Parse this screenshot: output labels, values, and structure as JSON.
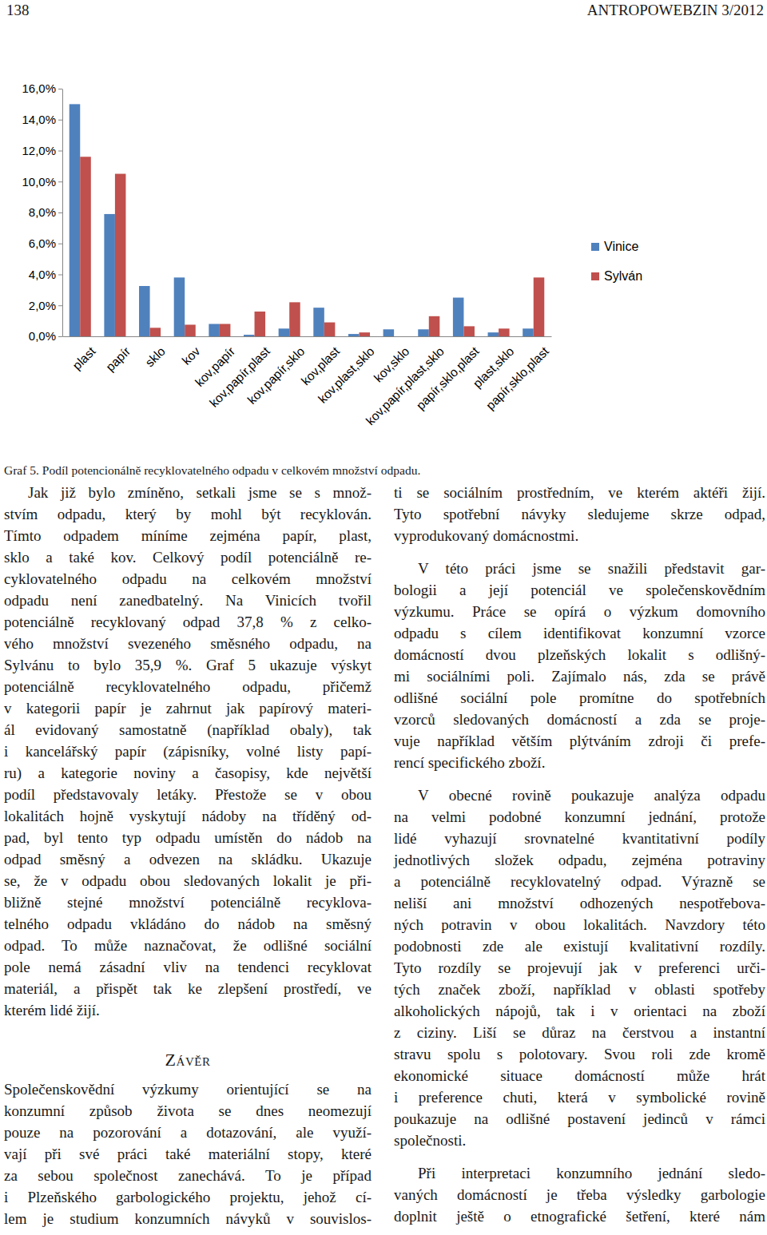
{
  "header": {
    "page": "138",
    "journal": "ANTROPOWEBZIN 3/2012"
  },
  "chart_data": {
    "type": "bar",
    "categories": [
      "plast",
      "papír",
      "sklo",
      "kov",
      "kov,papír",
      "kov,papír,plast",
      "kov,papír,sklo",
      "kov,plast",
      "kov,plast,sklo",
      "kov,sklo",
      "kov,papír,plast,sklo",
      "papír,sklo,plast",
      "plast,sklo",
      "papír,sklo,plast"
    ],
    "series": [
      {
        "name": "Vinice",
        "color": "#4f81bd",
        "values": [
          15.0,
          7.9,
          3.25,
          3.8,
          0.8,
          0.1,
          0.5,
          1.85,
          0.15,
          0.45,
          0.45,
          2.5,
          0.25,
          0.5
        ]
      },
      {
        "name": "Sylván",
        "color": "#c0504d",
        "values": [
          11.6,
          10.5,
          0.55,
          0.75,
          0.8,
          1.6,
          2.2,
          0.9,
          0.25,
          0,
          1.3,
          0.65,
          0.5,
          3.8
        ]
      }
    ],
    "ylim": [
      0,
      16
    ],
    "yticks": [
      {
        "value": 0,
        "label": "0,0%"
      },
      {
        "value": 2,
        "label": "2,0%"
      },
      {
        "value": 4,
        "label": "4,0%"
      },
      {
        "value": 6,
        "label": "6,0%"
      },
      {
        "value": 8,
        "label": "8,0%"
      },
      {
        "value": 10,
        "label": "10,0%"
      },
      {
        "value": 12,
        "label": "12,0%"
      },
      {
        "value": 14,
        "label": "14,0%"
      },
      {
        "value": 16,
        "label": "16,0%"
      }
    ],
    "grid": false,
    "legend": "right"
  },
  "caption": "Graf 5. Podíl potencionálně recyklovatelného odpadu v celkovém množství odpadu.",
  "columns": [
    {
      "blocks": [
        {
          "type": "paragraph",
          "indent": true,
          "runs_on": false,
          "lines": [
            "Jak již bylo zmíněno, setkali jsme se s množ-",
            "stvím odpadu, který by mohl být recyklován.",
            "Tímto odpadem míníme zejména papír, plast,",
            "sklo a také kov. Celkový podíl potenciálně re-",
            "cyklovatelného odpadu na celkovém množství",
            "odpadu není zanedbatelný. Na Vinicích tvořil",
            "potenciálně recyklovaný odpad 37,8 % z celko-",
            "vého množství svezeného směsného odpadu, na",
            "Sylvánu to bylo 35,9 %. Graf 5 ukazuje výskyt",
            "potenciálně recyklovatelného odpadu, přičemž",
            "v kategorii papír je zahrnut jak papírový materi-",
            "ál evidovaný samostatně (například obaly), tak",
            "i kancelářský papír (zápisníky, volné listy papí-",
            "ru) a kategorie noviny a časopisy, kde největší",
            "podíl představovaly letáky. Přestože se v obou",
            "lokalitách hojně vyskytují nádoby na tříděný od-",
            "pad, byl tento typ odpadu umístěn do nádob na",
            "odpad směsný a odvezen na skládku. Ukazuje",
            "se, že v odpadu obou sledovaných lokalit je při-",
            "bližně stejné množství potenciálně recyklova-",
            "telného odpadu vkládáno do nádob na směsný",
            "odpad. To může naznačovat, že odlišné sociální",
            "pole nemá zásadní vliv na tendenci recyklovat",
            "materiál, a přispět tak ke zlepšení prostředí, ve",
            "kterém lidé žijí."
          ]
        },
        {
          "type": "heading",
          "text": "Závěr"
        },
        {
          "type": "paragraph",
          "indent": false,
          "runs_on": true,
          "lines": [
            "Společenskovědní výzkumy orientující se na",
            "konzumní způsob života se dnes neomezují",
            "pouze na pozorování a dotazování, ale využí-",
            "vají při své práci také materiální stopy, které",
            "za sebou společnost zanechává. To je případ",
            "i Plzeňského garbologického projektu, jehož cí-",
            "lem je studium konzumních návyků v souvislos-"
          ]
        }
      ]
    },
    {
      "blocks": [
        {
          "type": "paragraph",
          "indent": false,
          "runs_on": false,
          "lines": [
            "ti se sociálním prostředním, ve kterém aktéři žijí.",
            "Tyto spotřební návyky sledujeme skrze odpad,",
            "vyprodukovaný domácnostmi."
          ]
        },
        {
          "type": "paragraph",
          "indent": true,
          "runs_on": false,
          "lines": [
            "V této práci jsme se snažili představit gar-",
            "bologii a její potenciál ve společenskovědním",
            "výzkumu. Práce se opírá o výzkum domovního",
            "odpadu s cílem identifikovat konzumní vzorce",
            "domácností dvou plzeňských lokalit s odlišný-",
            "mi sociálními poli. Zajímalo nás, zda se právě",
            "odlišné sociální pole promítne do spotřebních",
            "vzorců sledovaných domácností a zda se proje-",
            "vuje například větším plýtváním zdroji či prefe-",
            "rencí specifického zboží."
          ]
        },
        {
          "type": "paragraph",
          "indent": true,
          "runs_on": false,
          "lines": [
            "V obecné rovině poukazuje analýza odpadu",
            "na velmi podobné konzumní jednání, protože",
            "lidé vyhazují srovnatelné kvantitativní podíly",
            "jednotlivých složek odpadu, zejména potraviny",
            "a potenciálně recyklovatelný odpad. Výrazně se",
            "neliší ani množství odhozených nespotřebova-",
            "ných potravin v obou lokalitách. Navzdory této",
            "podobnosti zde ale existují kvalitativní rozdíly.",
            "Tyto rozdíly se projevují jak v preferenci urči-",
            "tých značek zboží, například v oblasti spotřeby",
            "alkoholických nápojů, tak i v orientaci na zboží",
            "z ciziny. Liší se důraz na čerstvou a instantní",
            "stravu spolu s polotovary. Svou roli zde kromě",
            "ekonomické situace domácností může hrát",
            "i preference chuti, která v symbolické rovině",
            "poukazuje na odlišné postavení jedinců v rámci",
            "společnosti."
          ]
        },
        {
          "type": "paragraph",
          "indent": true,
          "runs_on": true,
          "lines": [
            "Při interpretaci konzumního jednání sledo-",
            "vaných domácností je třeba výsledky garbologie",
            "doplnit ještě o etnografické šetření, které nám"
          ]
        }
      ]
    }
  ]
}
